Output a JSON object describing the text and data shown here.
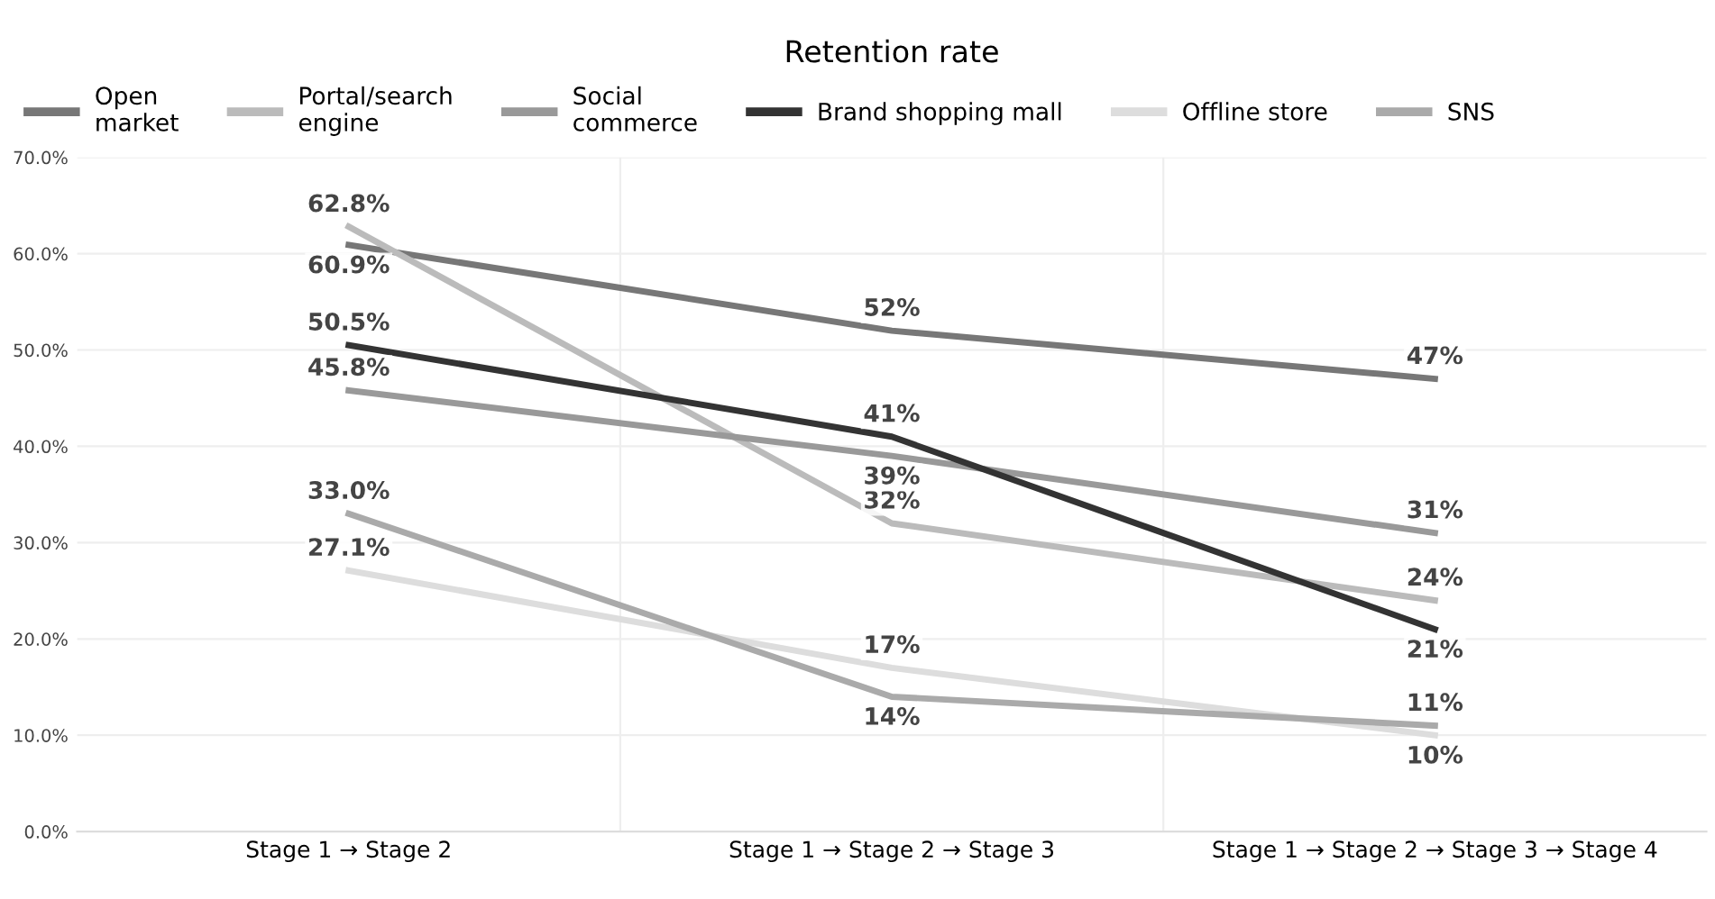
{
  "chart_data": {
    "type": "line",
    "title": "Retention rate",
    "categories": [
      "Stage 1 → Stage 2",
      "Stage 1 → Stage 2 → Stage 3",
      "Stage 1 → Stage 2 → Stage 3 → Stage 4"
    ],
    "series": [
      {
        "name": "Open\nmarket",
        "color": "#777777",
        "values": [
          60.9,
          52,
          47
        ],
        "value_labels": [
          "60.9%",
          "52%",
          "47%"
        ]
      },
      {
        "name": "Portal/search\nengine",
        "color": "#bbbbbb",
        "values": [
          62.8,
          32,
          24
        ],
        "value_labels": [
          "62.8%",
          "32%",
          "24%"
        ]
      },
      {
        "name": "Social\ncommerce",
        "color": "#999999",
        "values": [
          45.8,
          39,
          31
        ],
        "value_labels": [
          "45.8%",
          "39%",
          "31%"
        ]
      },
      {
        "name": "Brand shopping mall",
        "color": "#333333",
        "values": [
          50.5,
          41,
          21
        ],
        "value_labels": [
          "50.5%",
          "41%",
          "21%"
        ]
      },
      {
        "name": "Offline store",
        "color": "#dddddd",
        "values": [
          27.1,
          17,
          10
        ],
        "value_labels": [
          "27.1%",
          "17%",
          "10%"
        ]
      },
      {
        "name": "SNS",
        "color": "#aaaaaa",
        "values": [
          33.0,
          14,
          11
        ],
        "value_labels": [
          "33.0%",
          "14%",
          "11%"
        ]
      }
    ],
    "ylim": [
      0,
      70
    ],
    "yticks": [
      {
        "value": 0,
        "label": "0.0%"
      },
      {
        "value": 10,
        "label": "10.0%"
      },
      {
        "value": 20,
        "label": "20.0%"
      },
      {
        "value": 30,
        "label": "30.0%"
      },
      {
        "value": 40,
        "label": "40.0%"
      },
      {
        "value": 50,
        "label": "50.0%"
      },
      {
        "value": 60,
        "label": "60.0%"
      },
      {
        "value": 70,
        "label": "70.0%"
      }
    ],
    "grid": true,
    "legend": "top",
    "line_style": "solid"
  }
}
